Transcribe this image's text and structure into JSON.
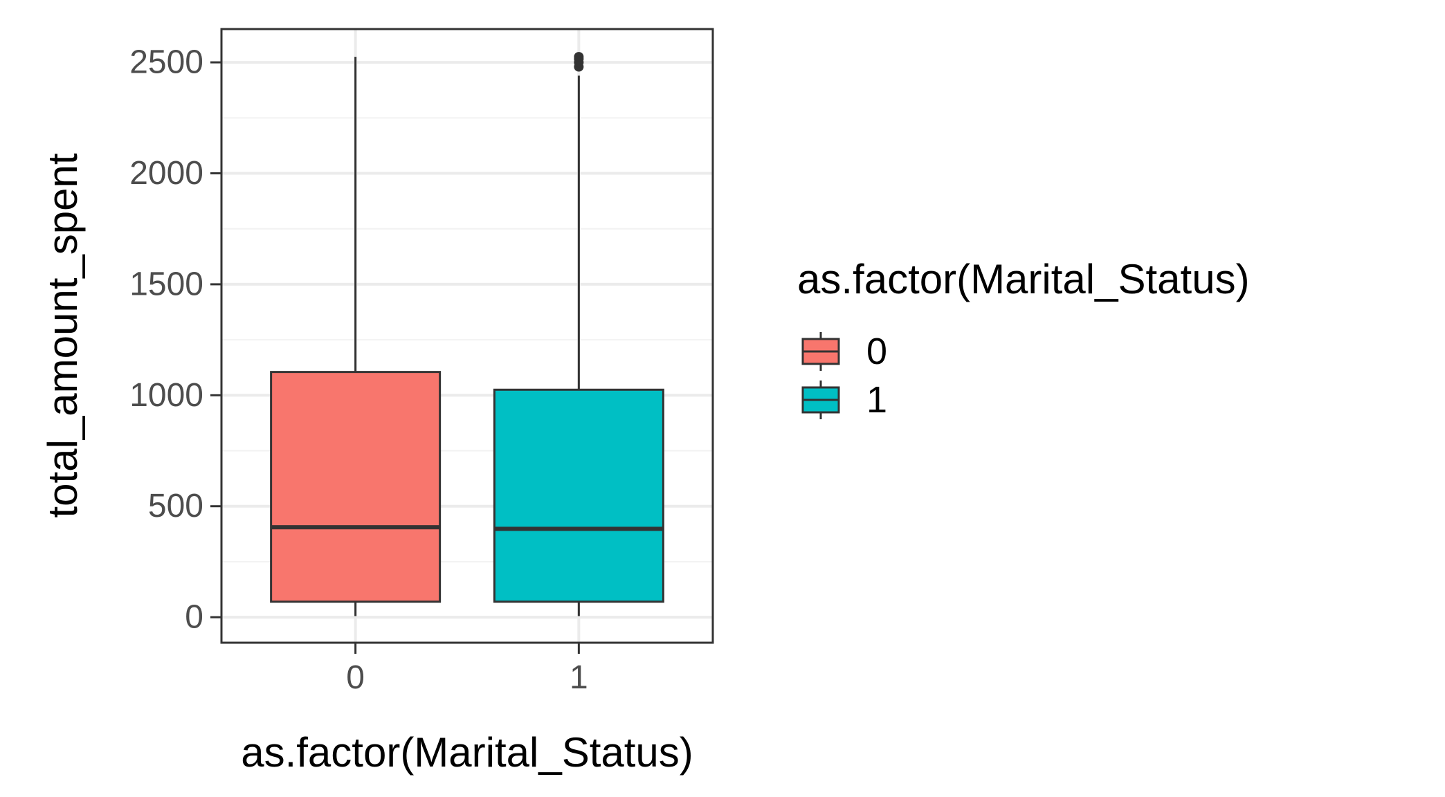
{
  "chart_data": {
    "type": "box",
    "xlabel": "as.factor(Marital_Status)",
    "ylabel": "total_amount_spent",
    "categories": [
      "0",
      "1"
    ],
    "ylim": [
      -115,
      2650
    ],
    "yticks": [
      0,
      500,
      1000,
      1500,
      2000,
      2500
    ],
    "ytick_labels": [
      "0",
      "500",
      "1000",
      "1500",
      "2000",
      "2500"
    ],
    "grid": true,
    "legend": {
      "title": "as.factor(Marital_Status)",
      "position": "right",
      "items": [
        {
          "label": "0",
          "color": "#F8766D"
        },
        {
          "label": "1",
          "color": "#00BFC4"
        }
      ]
    },
    "boxes": [
      {
        "category": "0",
        "min": 5,
        "q1": 70,
        "median": 405,
        "q3": 1105,
        "max": 2525,
        "outliers": [],
        "color": "#F8766D"
      },
      {
        "category": "1",
        "min": 5,
        "q1": 70,
        "median": 398,
        "q3": 1025,
        "max": 2440,
        "outliers": [
          2480,
          2500,
          2515,
          2525
        ],
        "color": "#00BFC4"
      }
    ]
  }
}
